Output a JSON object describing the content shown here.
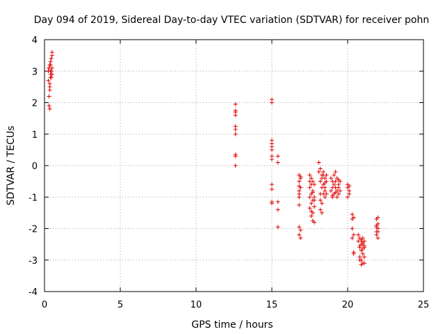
{
  "chart_data": {
    "type": "scatter",
    "title": "Day 094 of 2019, Sidereal Day-to-day VTEC variation (SDTVAR) for receiver pohn",
    "xlabel": "GPS time / hours",
    "ylabel": "SDTVAR / TECUs",
    "xlim": [
      0,
      25
    ],
    "ylim": [
      -4,
      4
    ],
    "xticks": [
      "0",
      "5",
      "10",
      "15",
      "20",
      "25"
    ],
    "yticks": [
      "-4",
      "-3",
      "-2",
      "-1",
      "0",
      "1",
      "2",
      "3",
      "4"
    ],
    "grid": true,
    "marker": "+",
    "marker_color": "#e00000",
    "series": [
      {
        "name": "SDTVAR",
        "x": [
          0.25,
          0.25,
          0.3,
          0.3,
          0.35,
          0.35,
          0.35,
          0.4,
          0.4,
          0.4,
          0.45,
          0.45,
          0.5,
          0.5,
          0.5,
          0.3,
          0.35,
          0.4,
          0.45,
          0.5,
          0.3,
          0.35,
          0.4,
          12.6,
          12.6,
          12.6,
          12.6,
          12.6,
          12.6,
          12.6,
          12.6,
          12.6,
          12.6,
          15.0,
          15.0,
          15.0,
          15.0,
          15.0,
          15.0,
          15.0,
          15.0,
          15.0,
          15.0,
          15.0,
          15.0,
          15.4,
          15.4,
          15.4,
          15.4,
          15.4,
          16.8,
          16.8,
          16.8,
          16.8,
          16.8,
          16.8,
          16.8,
          16.9,
          16.9,
          16.9,
          16.9,
          16.8,
          16.8,
          16.9,
          17.5,
          17.5,
          17.5,
          17.5,
          17.6,
          17.6,
          17.6,
          17.6,
          17.7,
          17.7,
          17.7,
          17.7,
          17.8,
          17.8,
          17.8,
          17.8,
          17.5,
          17.6,
          17.7,
          17.8,
          17.6,
          17.7,
          18.1,
          18.1,
          18.2,
          18.2,
          18.2,
          18.3,
          18.3,
          18.3,
          18.4,
          18.4,
          18.5,
          18.5,
          18.5,
          18.6,
          18.6,
          18.2,
          18.3,
          18.4,
          18.5,
          18.2,
          18.3,
          18.4,
          18.6,
          18.5,
          18.9,
          18.9,
          19.0,
          19.0,
          19.1,
          19.1,
          19.2,
          19.2,
          19.3,
          19.3,
          19.4,
          19.4,
          19.5,
          19.5,
          19.0,
          19.1,
          19.2,
          19.3,
          19.4,
          19.0,
          19.2,
          19.4,
          20.0,
          20.0,
          20.1,
          20.1,
          20.0,
          20.1,
          20.3,
          20.3,
          20.3,
          20.4,
          20.4,
          20.4,
          20.3,
          20.4,
          20.7,
          20.7,
          20.8,
          20.8,
          20.8,
          20.9,
          20.9,
          20.9,
          21.0,
          21.0,
          21.0,
          21.1,
          21.1,
          21.1,
          20.8,
          20.9,
          21.0,
          21.1,
          20.9,
          21.0,
          20.8,
          20.9,
          21.0,
          21.1,
          21.9,
          21.9,
          21.9,
          22.0,
          22.0,
          22.0,
          22.0,
          21.9,
          22.0,
          21.9
        ],
        "y": [
          3.0,
          2.7,
          3.1,
          2.2,
          3.2,
          2.4,
          1.8,
          2.9,
          3.3,
          3.0,
          3.4,
          2.8,
          3.5,
          3.1,
          2.9,
          1.9,
          2.6,
          3.2,
          3.0,
          3.6,
          3.1,
          2.5,
          2.8,
          1.95,
          1.75,
          1.7,
          1.6,
          1.25,
          1.15,
          1.0,
          0.35,
          0.3,
          0.0,
          2.1,
          2.0,
          0.8,
          0.7,
          0.6,
          0.5,
          0.3,
          0.2,
          -0.6,
          -0.75,
          -1.15,
          -1.2,
          0.3,
          0.1,
          -1.15,
          -1.4,
          -1.95,
          -0.3,
          -0.5,
          -0.8,
          -1.0,
          -1.25,
          -1.95,
          -2.2,
          -0.35,
          -0.7,
          -2.05,
          -2.3,
          -0.65,
          -0.9,
          -0.4,
          -0.5,
          -0.7,
          -1.0,
          -1.35,
          -0.6,
          -0.9,
          -1.2,
          -1.6,
          -0.5,
          -0.8,
          -1.1,
          -1.75,
          -0.6,
          -1.0,
          -1.3,
          -1.8,
          -0.3,
          -0.4,
          -1.5,
          -1.1,
          -1.45,
          -0.85,
          0.1,
          -0.2,
          -0.5,
          -0.9,
          -1.4,
          -0.3,
          -0.7,
          -1.2,
          -0.2,
          -0.6,
          -0.4,
          -0.8,
          -1.0,
          -0.3,
          -0.5,
          -1.1,
          -1.5,
          -0.9,
          -0.7,
          -0.1,
          -0.4,
          -0.3,
          -0.9,
          -0.55,
          -0.4,
          -0.8,
          -0.5,
          -1.0,
          -0.3,
          -0.9,
          -0.2,
          -0.7,
          -0.4,
          -1.0,
          -0.6,
          -0.9,
          -0.5,
          -0.8,
          -0.7,
          -0.6,
          -0.5,
          -0.8,
          -0.7,
          -0.95,
          -0.85,
          -0.45,
          -0.6,
          -0.7,
          -0.8,
          -0.65,
          -1.0,
          -0.9,
          -1.55,
          -1.7,
          -2.0,
          -2.2,
          -2.75,
          -2.8,
          -2.3,
          -1.65,
          -2.2,
          -2.4,
          -2.3,
          -2.6,
          -2.9,
          -2.4,
          -2.7,
          -3.0,
          -2.3,
          -2.5,
          -3.1,
          -2.4,
          -2.6,
          -3.1,
          -3.0,
          -3.15,
          -2.8,
          -2.9,
          -2.5,
          -2.65,
          -2.55,
          -2.35,
          -2.45,
          -2.55,
          -1.7,
          -1.9,
          -2.1,
          -1.65,
          -1.85,
          -2.0,
          -2.3,
          -2.2,
          -2.1,
          -1.95
        ]
      }
    ]
  }
}
